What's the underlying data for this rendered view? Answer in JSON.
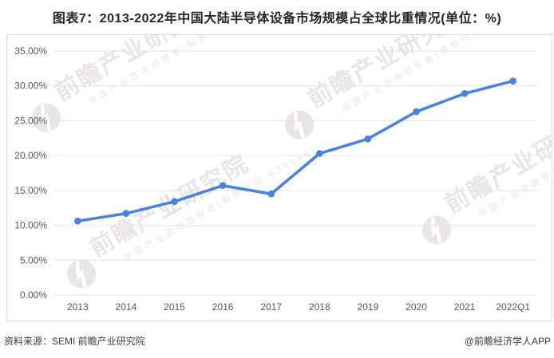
{
  "title": "图表7：2013-2022年中国大陆半导体设备市场规模占全球比重情况(单位：%)",
  "footer": {
    "source": "资料来源：SEMI 前瞻产业研究院",
    "credit": "@前瞻经济学人APP"
  },
  "watermark": {
    "brand": "前瞻产业研究院",
    "tagline": "中国产业咨询领导者(股票代码:839599)"
  },
  "colors": {
    "line": "#4582e2",
    "marker": "#4582e2",
    "grid": "#e2e2e2",
    "axis_text": "#595959",
    "border": "#d9d9d9",
    "title_text": "#262626",
    "footer_text": "#3c3c3c",
    "watermark": "#e8e4e7"
  },
  "chart_data": {
    "type": "line",
    "title": "图表7：2013-2022年中国大陆半导体设备市场规模占全球比重情况(单位：%)",
    "categories": [
      "2013",
      "2014",
      "2015",
      "2016",
      "2017",
      "2018",
      "2019",
      "2020",
      "2021",
      "2022Q1"
    ],
    "values": [
      10.6,
      11.7,
      13.4,
      15.7,
      14.5,
      20.3,
      22.4,
      26.3,
      28.9,
      30.7
    ],
    "unit": "%",
    "xlabel": "",
    "ylabel": "",
    "ylim": [
      0,
      35
    ],
    "ytick_step": 5,
    "ytick_decimals": 2,
    "ytick_suffix": "%",
    "grid": true,
    "legend": false,
    "marker": "circle"
  }
}
